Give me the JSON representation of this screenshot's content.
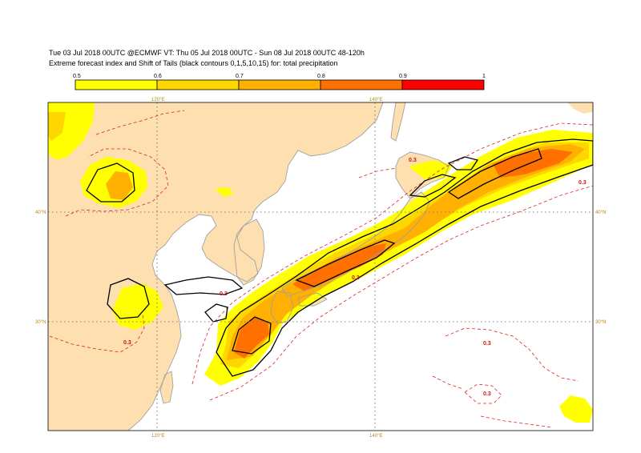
{
  "header": {
    "line1": "Tue 03 Jul 2018 00UTC @ECMWF VT: Thu 05 Jul 2018 00UTC - Sun 08 Jul 2018 00UTC  48-120h",
    "line2": "Extreme forecast index and Shift of Tails (black contours 0,1,5,10,15) for: total precipitation"
  },
  "legend": {
    "ticks": [
      "0.5",
      "0.6",
      "0.7",
      "0.8",
      "0.9",
      "1"
    ],
    "colors": [
      "#ffff00",
      "#ffd700",
      "#ffb000",
      "#ff7000",
      "#ff0000"
    ]
  },
  "map": {
    "colors": {
      "land": "#fddfb0",
      "sea": "#ffffff",
      "grid": "#808080",
      "coast": "#a0a0a0",
      "sot": "#000000",
      "efi_contour": "#dd2222"
    },
    "lon_labels": [
      "120°E",
      "140°E"
    ],
    "lat_labels": [
      "40°N",
      "30°N"
    ],
    "contour_labels": [
      "0.3",
      "0.3",
      "0.3",
      "0.3",
      "0.3",
      "0.3",
      "0.3"
    ]
  }
}
